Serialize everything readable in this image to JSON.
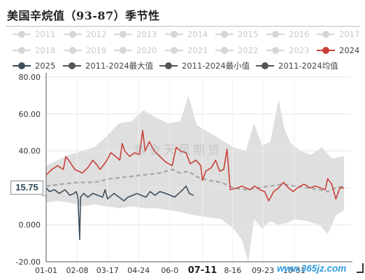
{
  "title": "美国辛烷值（93-87）季节性",
  "colors": {
    "series_2024": "#c8403a",
    "series_2025": "#3d4e5c",
    "max_line": "#555555",
    "min_line": "#555555",
    "avg_line": "#a6a6a6",
    "band": "#dcdcdc",
    "legend_disabled": "#d6d6d6"
  },
  "legend": [
    {
      "label": "2011",
      "active": false
    },
    {
      "label": "2012",
      "active": false
    },
    {
      "label": "2013",
      "active": false
    },
    {
      "label": "2014",
      "active": false
    },
    {
      "label": "2015",
      "active": false
    },
    {
      "label": "2016",
      "active": false
    },
    {
      "label": "2017",
      "active": false
    },
    {
      "label": "2018",
      "active": false
    },
    {
      "label": "2019",
      "active": false
    },
    {
      "label": "2020",
      "active": false
    },
    {
      "label": "2021",
      "active": false
    },
    {
      "label": "2022",
      "active": false
    },
    {
      "label": "2023",
      "active": false
    },
    {
      "label": "2024",
      "active": true,
      "color": "#c8403a"
    },
    {
      "label": "2025",
      "active": true,
      "color": "#3d4e5c"
    },
    {
      "label": "2011-2024最大值",
      "active": true,
      "color": "#555555"
    },
    {
      "label": "2011-2024最小值",
      "active": true,
      "color": "#555555"
    },
    {
      "label": "2011-2024均值",
      "active": true,
      "color": "#555555"
    }
  ],
  "chart_data": {
    "type": "line",
    "y_ticks": [
      "-20.00",
      "0.000",
      "20.00",
      "40.00",
      "60.00",
      "80.00"
    ],
    "ylim": [
      -20,
      80
    ],
    "x_ticks": [
      "01-01",
      "02-08",
      "03-17",
      "04-24",
      "06-0",
      "07-11",
      "8-16",
      "09-23",
      "10-31"
    ],
    "x_highlight": "07-11",
    "crosshair_value": "15.75",
    "series": [
      {
        "name": "2024",
        "points": [
          [
            1,
            27
          ],
          [
            8,
            30
          ],
          [
            15,
            32
          ],
          [
            22,
            30
          ],
          [
            25,
            37
          ],
          [
            30,
            34
          ],
          [
            36,
            30
          ],
          [
            45,
            28
          ],
          [
            52,
            31
          ],
          [
            58,
            35
          ],
          [
            62,
            33
          ],
          [
            67,
            30
          ],
          [
            74,
            34
          ],
          [
            80,
            39
          ],
          [
            86,
            37
          ],
          [
            91,
            35
          ],
          [
            94,
            44
          ],
          [
            97,
            40
          ],
          [
            103,
            37
          ],
          [
            109,
            39
          ],
          [
            115,
            38
          ],
          [
            119,
            51
          ],
          [
            122,
            40
          ],
          [
            127,
            45
          ],
          [
            133,
            40
          ],
          [
            140,
            37
          ],
          [
            147,
            34
          ],
          [
            155,
            32
          ],
          [
            160,
            42
          ],
          [
            165,
            40
          ],
          [
            172,
            39
          ],
          [
            177,
            33
          ],
          [
            184,
            35
          ],
          [
            190,
            32
          ],
          [
            192,
            24
          ],
          [
            196,
            29
          ],
          [
            203,
            31
          ],
          [
            208,
            35
          ],
          [
            213,
            29
          ],
          [
            218,
            30
          ],
          [
            222,
            41
          ],
          [
            226,
            19
          ],
          [
            235,
            20
          ],
          [
            240,
            21
          ],
          [
            250,
            19
          ],
          [
            256,
            21
          ],
          [
            262,
            19
          ],
          [
            268,
            18
          ],
          [
            273,
            13
          ],
          [
            279,
            18
          ],
          [
            285,
            20
          ],
          [
            291,
            23
          ],
          [
            297,
            20
          ],
          [
            303,
            18
          ],
          [
            308,
            20
          ],
          [
            316,
            22
          ],
          [
            324,
            20
          ],
          [
            330,
            21
          ],
          [
            336,
            20
          ],
          [
            342,
            19
          ],
          [
            345,
            25
          ],
          [
            350,
            22
          ],
          [
            355,
            14
          ],
          [
            360,
            20
          ],
          [
            365,
            20
          ]
        ]
      },
      {
        "name": "2025",
        "points": [
          [
            1,
            20
          ],
          [
            5,
            18
          ],
          [
            11,
            19
          ],
          [
            17,
            17
          ],
          [
            24,
            19
          ],
          [
            30,
            16
          ],
          [
            35,
            17
          ],
          [
            38,
            18
          ],
          [
            40,
            14
          ],
          [
            42,
            -8
          ],
          [
            43,
            15
          ],
          [
            47,
            17
          ],
          [
            52,
            15
          ],
          [
            58,
            17
          ],
          [
            64,
            16
          ],
          [
            70,
            15
          ],
          [
            73,
            19
          ],
          [
            76,
            14
          ],
          [
            84,
            17
          ],
          [
            90,
            15
          ],
          [
            96,
            13
          ],
          [
            101,
            15
          ],
          [
            107,
            16
          ],
          [
            112,
            17
          ],
          [
            117,
            16
          ],
          [
            123,
            15
          ],
          [
            128,
            18
          ],
          [
            134,
            16
          ],
          [
            140,
            18
          ],
          [
            147,
            17
          ],
          [
            153,
            16
          ],
          [
            158,
            15
          ],
          [
            163,
            17
          ],
          [
            168,
            19
          ],
          [
            172,
            21
          ],
          [
            176,
            17
          ],
          [
            181,
            16
          ]
        ]
      },
      {
        "name": "2011-2024均值",
        "points": [
          [
            1,
            21
          ],
          [
            20,
            22
          ],
          [
            40,
            23
          ],
          [
            60,
            23
          ],
          [
            80,
            25
          ],
          [
            100,
            26
          ],
          [
            120,
            27
          ],
          [
            140,
            28
          ],
          [
            155,
            30
          ],
          [
            165,
            28
          ],
          [
            175,
            29
          ],
          [
            185,
            26
          ],
          [
            200,
            24
          ],
          [
            215,
            23
          ],
          [
            230,
            20
          ],
          [
            245,
            19
          ],
          [
            260,
            20
          ],
          [
            275,
            21
          ],
          [
            290,
            22
          ],
          [
            305,
            21
          ],
          [
            320,
            20
          ],
          [
            335,
            19
          ],
          [
            345,
            18
          ],
          [
            355,
            20
          ],
          [
            365,
            21
          ]
        ]
      }
    ],
    "band": {
      "name": "2011-2024最大值 / 2011-2024最小值",
      "upper": [
        [
          1,
          32
        ],
        [
          15,
          35
        ],
        [
          30,
          38
        ],
        [
          45,
          40
        ],
        [
          60,
          42
        ],
        [
          75,
          48
        ],
        [
          90,
          55
        ],
        [
          105,
          56
        ],
        [
          120,
          62
        ],
        [
          135,
          58
        ],
        [
          150,
          55
        ],
        [
          165,
          56
        ],
        [
          175,
          70
        ],
        [
          185,
          54
        ],
        [
          200,
          50
        ],
        [
          215,
          46
        ],
        [
          230,
          42
        ],
        [
          245,
          40
        ],
        [
          255,
          55
        ],
        [
          265,
          43
        ],
        [
          275,
          45
        ],
        [
          285,
          68
        ],
        [
          292,
          52
        ],
        [
          300,
          44
        ],
        [
          312,
          40
        ],
        [
          325,
          38
        ],
        [
          338,
          42
        ],
        [
          350,
          36
        ],
        [
          365,
          37
        ]
      ],
      "lower": [
        [
          1,
          12
        ],
        [
          15,
          13
        ],
        [
          30,
          12
        ],
        [
          45,
          10
        ],
        [
          60,
          11
        ],
        [
          75,
          10
        ],
        [
          90,
          9
        ],
        [
          105,
          10
        ],
        [
          120,
          9
        ],
        [
          135,
          9
        ],
        [
          150,
          8
        ],
        [
          165,
          7
        ],
        [
          175,
          6
        ],
        [
          185,
          5
        ],
        [
          200,
          4
        ],
        [
          215,
          3
        ],
        [
          230,
          -2
        ],
        [
          240,
          -8
        ],
        [
          248,
          -20
        ],
        [
          255,
          3
        ],
        [
          265,
          -2
        ],
        [
          275,
          2
        ],
        [
          285,
          0
        ],
        [
          295,
          1
        ],
        [
          305,
          3
        ],
        [
          320,
          2
        ],
        [
          335,
          0
        ],
        [
          345,
          -5
        ],
        [
          355,
          5
        ],
        [
          365,
          8
        ]
      ]
    }
  },
  "watermark": {
    "center_text": "紫金天风期货",
    "site": "www.365jz.com"
  }
}
